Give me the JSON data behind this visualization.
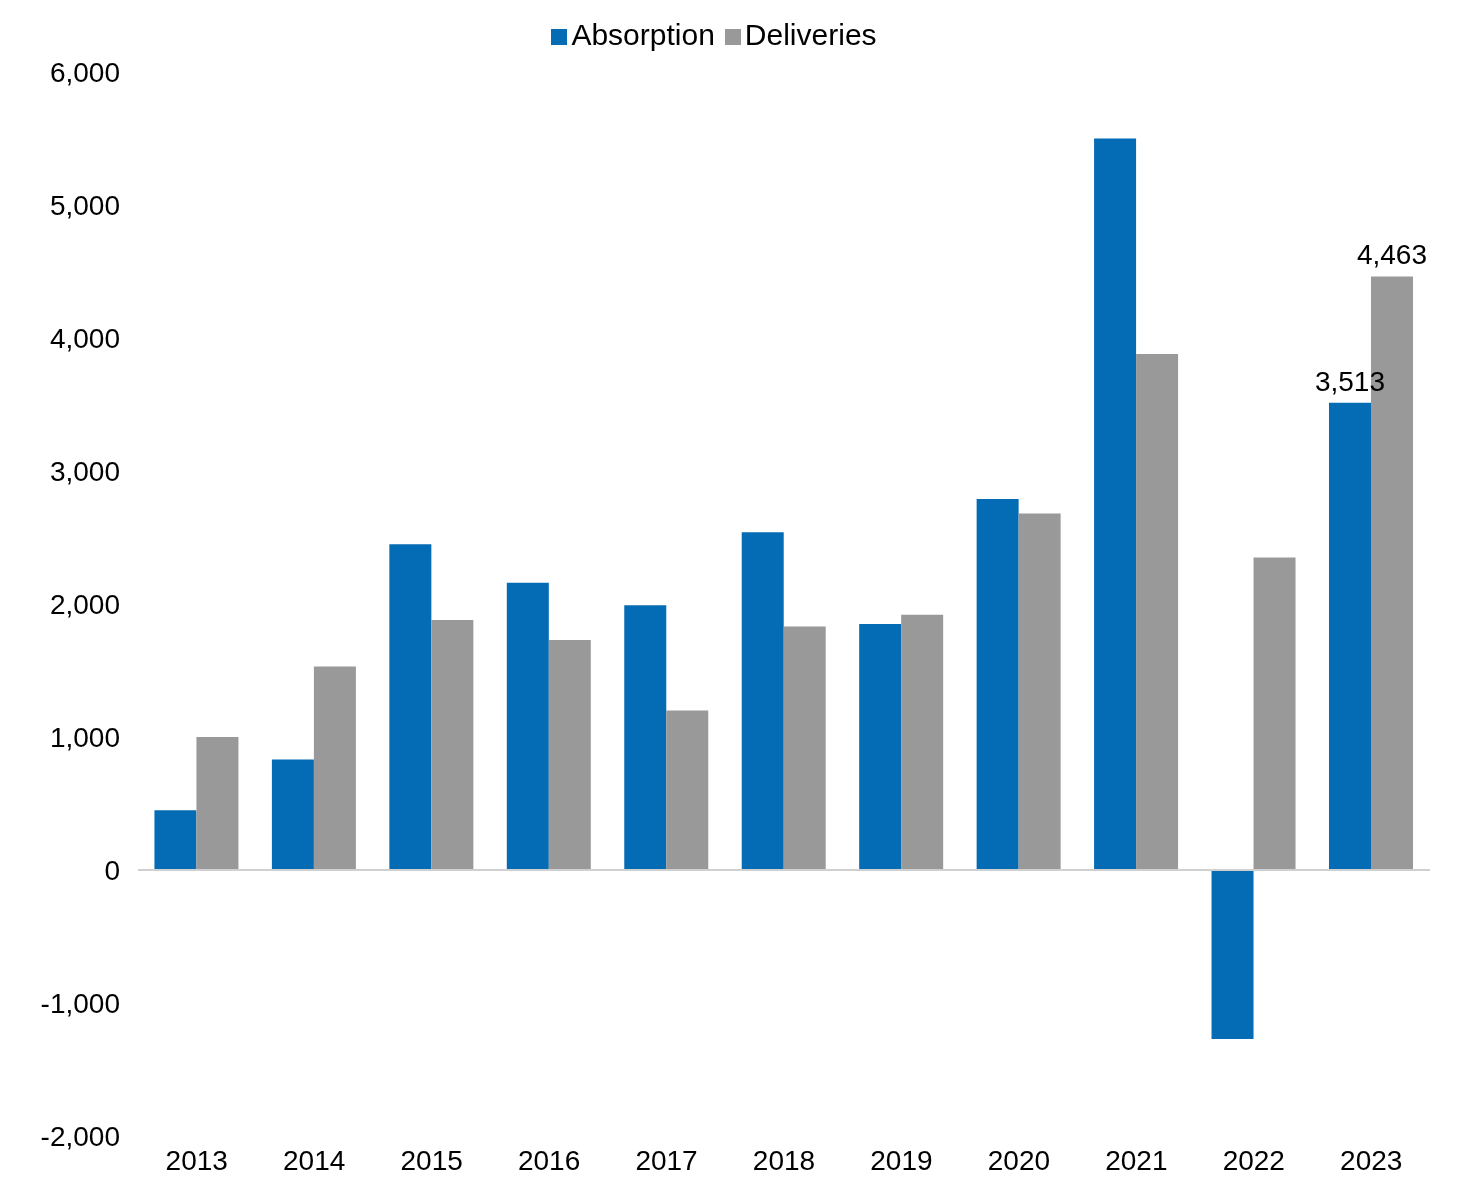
{
  "chart_data": {
    "type": "bar",
    "categories": [
      "2013",
      "2014",
      "2015",
      "2016",
      "2017",
      "2018",
      "2019",
      "2020",
      "2021",
      "2022",
      "2023"
    ],
    "series": [
      {
        "name": "Absorption",
        "color": "#046bb5",
        "values": [
          450,
          830,
          2450,
          2160,
          1990,
          2540,
          1850,
          2790,
          5500,
          -1270,
          3513
        ],
        "value_labels": [
          null,
          null,
          null,
          null,
          null,
          null,
          null,
          null,
          null,
          null,
          "3,513"
        ]
      },
      {
        "name": "Deliveries",
        "color": "#999999",
        "values": [
          1000,
          1530,
          1880,
          1730,
          1200,
          1830,
          1920,
          2680,
          3880,
          2350,
          4463
        ],
        "value_labels": [
          null,
          null,
          null,
          null,
          null,
          null,
          null,
          null,
          null,
          null,
          "4,463"
        ]
      }
    ],
    "ylim": [
      -2000,
      6000
    ],
    "yticks": [
      {
        "value": -2000,
        "label": "-2,000"
      },
      {
        "value": -1000,
        "label": "-1,000"
      },
      0,
      {
        "value": 1000,
        "label": "1,000"
      },
      {
        "value": 2000,
        "label": "2,000"
      },
      {
        "value": 3000,
        "label": "3,000"
      },
      {
        "value": 4000,
        "label": "4,000"
      },
      {
        "value": 5000,
        "label": "5,000"
      },
      {
        "value": 6000,
        "label": "6,000"
      }
    ],
    "legend": "top"
  }
}
